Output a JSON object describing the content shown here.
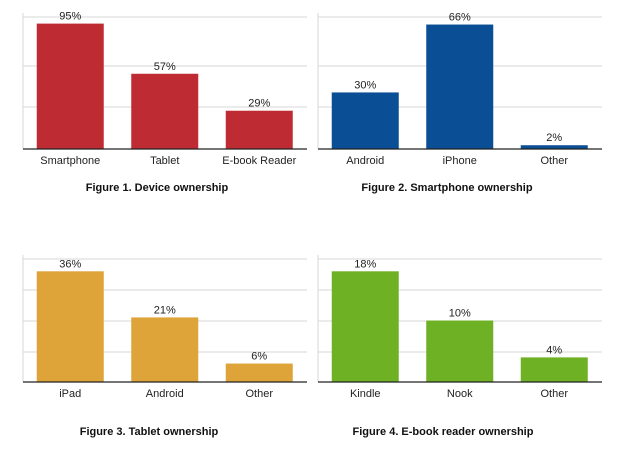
{
  "chart_data": [
    {
      "type": "bar",
      "title": "Figure 1. Device ownership",
      "categories": [
        "Smartphone",
        "Tablet",
        "E-book Reader"
      ],
      "values": [
        95,
        57,
        29
      ],
      "value_labels": [
        "95%",
        "57%",
        "29%"
      ],
      "ylim": [
        0,
        100
      ],
      "grid": true,
      "color": "#bf2b33"
    },
    {
      "type": "bar",
      "title": "Figure 2. Smartphone ownership",
      "categories": [
        "Android",
        "iPhone",
        "Other"
      ],
      "values": [
        30,
        66,
        2
      ],
      "value_labels": [
        "30%",
        "66%",
        "2%"
      ],
      "ylim": [
        0,
        70
      ],
      "grid": true,
      "color": "#0a4f96"
    },
    {
      "type": "bar",
      "title": "Figure 3. Tablet ownership",
      "categories": [
        "iPad",
        "Android",
        "Other"
      ],
      "values": [
        36,
        21,
        6
      ],
      "value_labels": [
        "36%",
        "21%",
        "6%"
      ],
      "ylim": [
        0,
        40
      ],
      "grid": true,
      "color": "#dea43a"
    },
    {
      "type": "bar",
      "title": "Figure 4. E-book reader ownership",
      "categories": [
        "Kindle",
        "Nook",
        "Other"
      ],
      "values": [
        18,
        10,
        4
      ],
      "value_labels": [
        "18%",
        "10%",
        "4%"
      ],
      "ylim": [
        0,
        20
      ],
      "grid": true,
      "color": "#6eb125"
    }
  ]
}
